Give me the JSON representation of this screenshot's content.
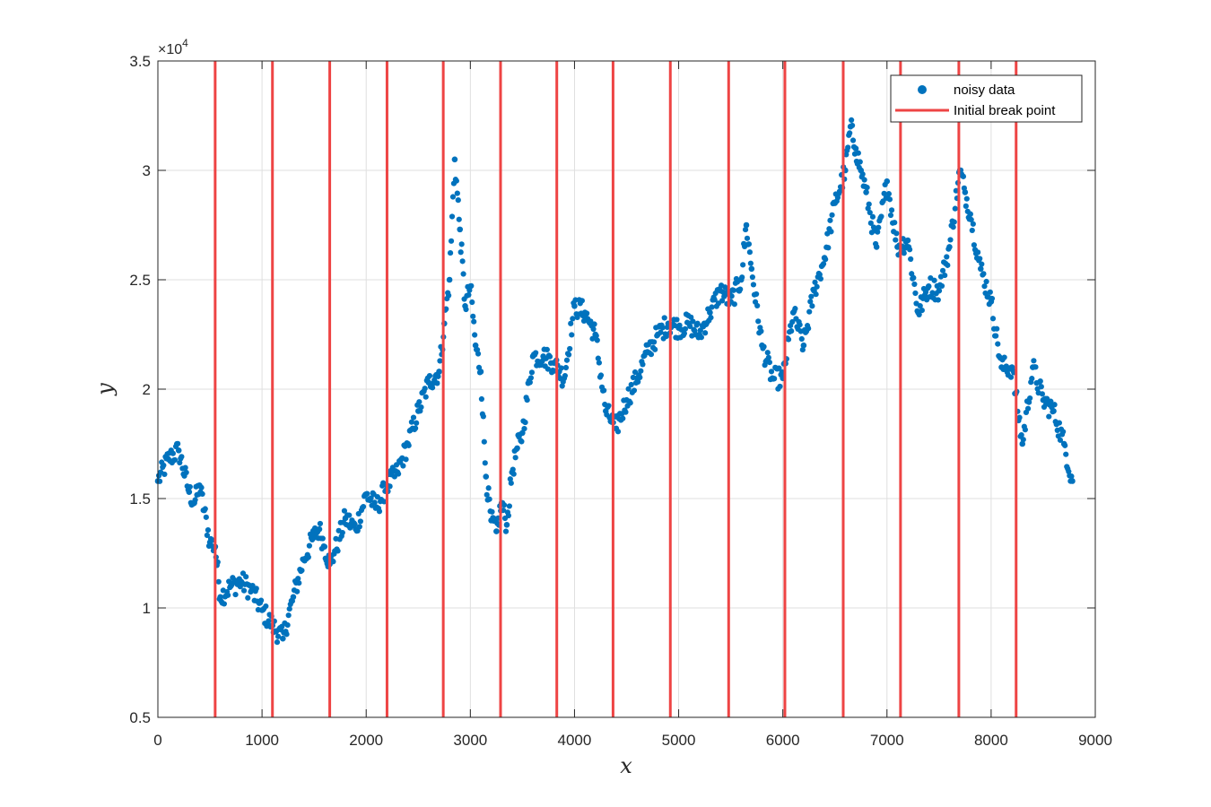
{
  "chart_data": {
    "type": "scatter",
    "xlabel": "x",
    "ylabel": "y",
    "xlim": [
      0,
      9000
    ],
    "ylim": [
      5000,
      35000
    ],
    "x_ticks": [
      0,
      1000,
      2000,
      3000,
      4000,
      5000,
      6000,
      7000,
      8000,
      9000
    ],
    "y_ticks": [
      5000,
      10000,
      15000,
      20000,
      25000,
      30000,
      35000
    ],
    "y_tick_labels": [
      "0.5",
      "1",
      "1.5",
      "2",
      "2.5",
      "3",
      "3.5"
    ],
    "y_exponent_label": {
      "base": "×10",
      "exponent": "4"
    },
    "grid": true,
    "legend_position": "top-right",
    "series": [
      {
        "name": "noisy data",
        "type": "scatter",
        "color": "#0072BD",
        "x": [
          0,
          100,
          200,
          300,
          350,
          400,
          500,
          550,
          600,
          700,
          800,
          900,
          1000,
          1100,
          1200,
          1300,
          1400,
          1500,
          1550,
          1600,
          1650,
          1700,
          1800,
          1900,
          2000,
          2100,
          2200,
          2300,
          2400,
          2500,
          2600,
          2700,
          2750,
          2800,
          2850,
          2900,
          2950,
          3000,
          3050,
          3100,
          3150,
          3200,
          3250,
          3300,
          3350,
          3400,
          3450,
          3500,
          3600,
          3700,
          3800,
          3900,
          4000,
          4100,
          4200,
          4300,
          4400,
          4500,
          4600,
          4700,
          4800,
          4900,
          5000,
          5100,
          5200,
          5300,
          5400,
          5500,
          5600,
          5650,
          5700,
          5800,
          5900,
          6000,
          6100,
          6200,
          6300,
          6400,
          6500,
          6600,
          6650,
          6700,
          6750,
          6800,
          6900,
          7000,
          7100,
          7200,
          7300,
          7400,
          7500,
          7600,
          7700,
          7750,
          7800,
          7900,
          8000,
          8100,
          8200,
          8300,
          8400,
          8500,
          8600,
          8700,
          8780
        ],
        "y": [
          15800,
          16800,
          17200,
          15300,
          14800,
          15600,
          13000,
          12800,
          10500,
          11000,
          11200,
          10800,
          9900,
          9200,
          8600,
          10500,
          12200,
          13300,
          13600,
          12800,
          12000,
          12600,
          14100,
          13600,
          15200,
          14600,
          15600,
          16200,
          17500,
          19000,
          20300,
          20800,
          23000,
          25000,
          30500,
          27300,
          23800,
          24700,
          22000,
          20800,
          16000,
          14000,
          13500,
          14800,
          13800,
          16200,
          17300,
          18000,
          21500,
          21500,
          21200,
          20500,
          23800,
          23500,
          22500,
          19000,
          18200,
          19500,
          20500,
          21700,
          22500,
          23000,
          22800,
          23000,
          22500,
          23500,
          24500,
          24000,
          25000,
          27500,
          25500,
          22000,
          20500,
          20500,
          23500,
          22000,
          24500,
          26000,
          28500,
          30000,
          32000,
          31000,
          30000,
          29000,
          26500,
          29500,
          26500,
          26800,
          23500,
          24700,
          24500,
          26500,
          30000,
          29000,
          28000,
          25500,
          24000,
          21000,
          21000,
          17500,
          21000,
          19500,
          19000,
          17500,
          15800
        ]
      },
      {
        "name": "Initial break point",
        "type": "vline",
        "color": "#EE4444",
        "x": [
          550,
          1100,
          1650,
          2200,
          2740,
          3290,
          3830,
          4370,
          4920,
          5480,
          6020,
          6580,
          7130,
          7690,
          8240
        ]
      }
    ]
  }
}
